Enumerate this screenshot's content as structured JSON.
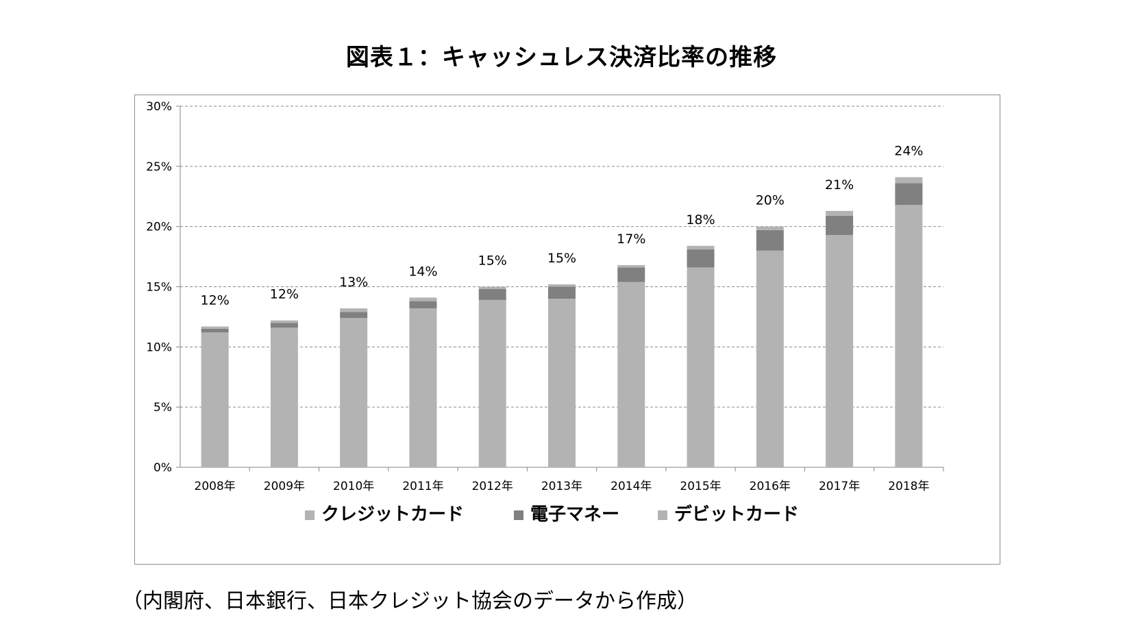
{
  "title": "図表１：キャッシュレス決済比率の推移",
  "source_note": "（内閣府、日本銀行、日本クレジット協会のデータから作成）",
  "chart_data": {
    "type": "bar",
    "stacked": true,
    "categories": [
      "2008年",
      "2009年",
      "2010年",
      "2011年",
      "2012年",
      "2013年",
      "2014年",
      "2015年",
      "2016年",
      "2017年",
      "2018年"
    ],
    "series": [
      {
        "name": "クレジットカード",
        "color": "#b3b3b3",
        "values": [
          11.2,
          11.6,
          12.4,
          13.2,
          13.9,
          14.0,
          15.4,
          16.6,
          18.0,
          19.3,
          21.8
        ]
      },
      {
        "name": "電子マネー",
        "color": "#808080",
        "values": [
          0.3,
          0.4,
          0.5,
          0.6,
          0.9,
          1.0,
          1.2,
          1.5,
          1.7,
          1.6,
          1.8
        ]
      },
      {
        "name": "デビットカード",
        "color": "#b3b3b3",
        "values": [
          0.2,
          0.2,
          0.3,
          0.3,
          0.2,
          0.2,
          0.2,
          0.3,
          0.3,
          0.4,
          0.5
        ]
      }
    ],
    "totals_labels": [
      "12%",
      "12%",
      "13%",
      "14%",
      "15%",
      "15%",
      "17%",
      "18%",
      "20%",
      "21%",
      "24%"
    ],
    "y_ticks": [
      "0%",
      "5%",
      "10%",
      "15%",
      "20%",
      "25%",
      "30%"
    ],
    "ylim": [
      0,
      30
    ],
    "grid": true,
    "legend_position": "bottom"
  }
}
